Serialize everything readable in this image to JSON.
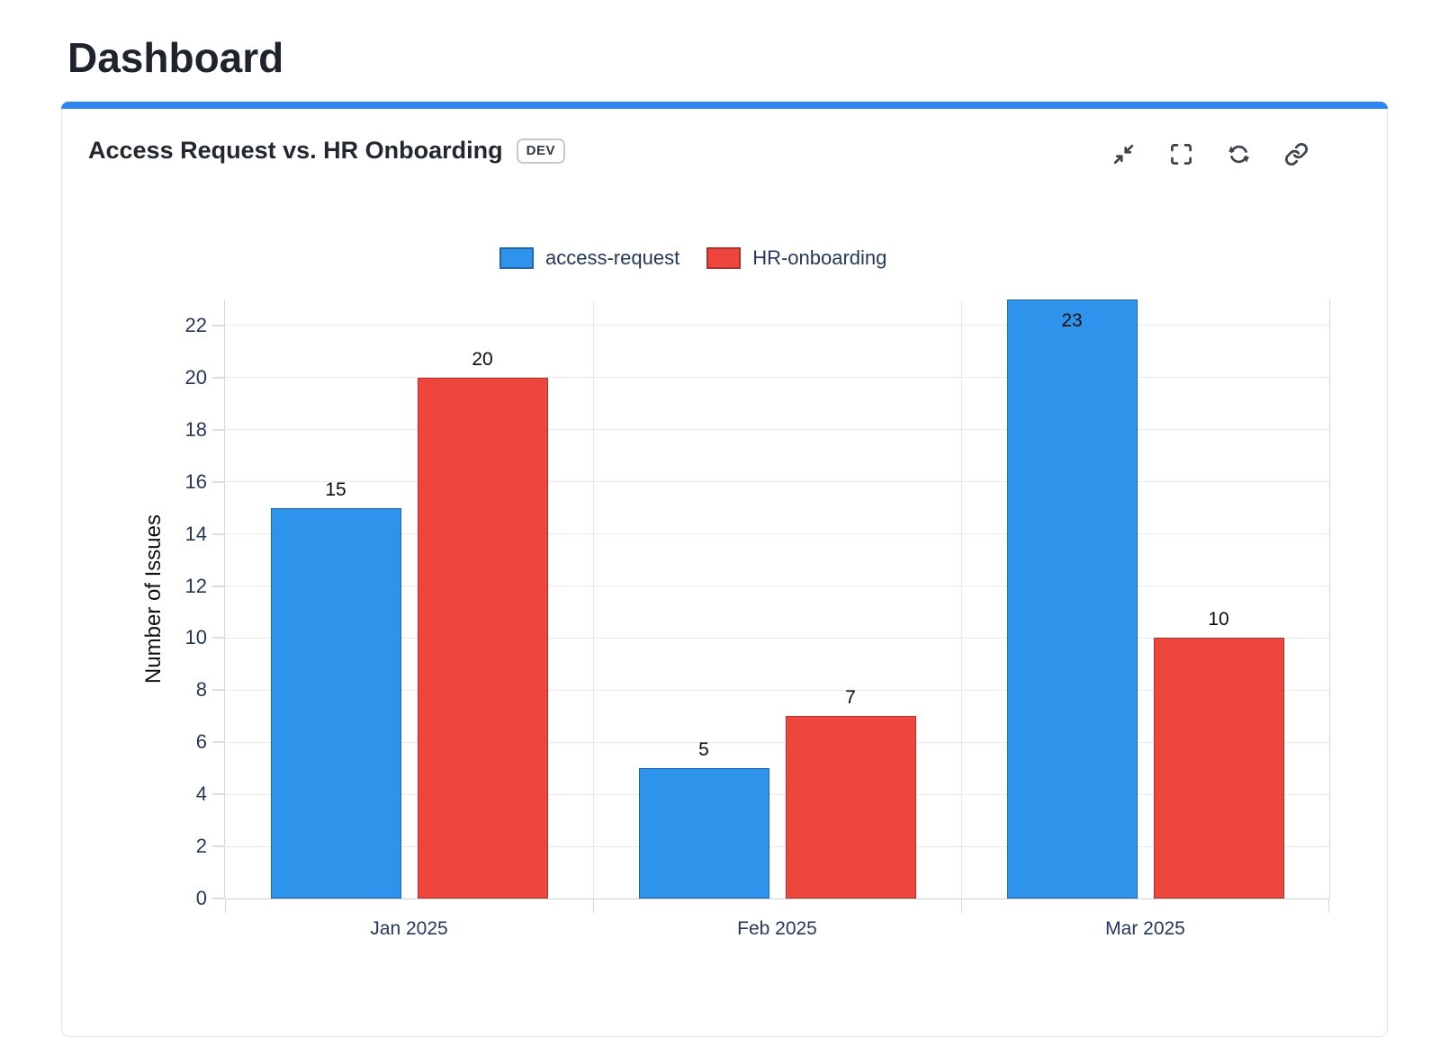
{
  "page": {
    "title": "Dashboard"
  },
  "card": {
    "title": "Access Request vs. HR Onboarding",
    "badge": "DEV",
    "toolbar": {
      "icons": [
        "collapse-icon",
        "fullscreen-icon",
        "refresh-icon",
        "link-icon"
      ]
    }
  },
  "colors": {
    "accent_bar": "#2f86f2",
    "series_blue": "#2e93ea",
    "series_red": "#ee453c",
    "axis_text": "#24385b",
    "icon": "#3c434b"
  },
  "chart_data": {
    "type": "bar",
    "title": "",
    "categories": [
      "Jan 2025",
      "Feb 2025",
      "Mar 2025"
    ],
    "series": [
      {
        "name": "access-request",
        "color": "#2e93ea",
        "border_color": "#1f66ad",
        "values": [
          15,
          5,
          23
        ]
      },
      {
        "name": "HR-onboarding",
        "color": "#ee453c",
        "border_color": "#b03228",
        "values": [
          20,
          7,
          10
        ]
      }
    ],
    "xlabel": "",
    "ylabel": "Number of Issues",
    "ylim": [
      0,
      23
    ],
    "yticks": [
      0,
      2,
      4,
      6,
      8,
      10,
      12,
      14,
      16,
      18,
      20,
      22
    ],
    "grid": true,
    "legend_position": "top-center",
    "bar_value_labels": true
  }
}
